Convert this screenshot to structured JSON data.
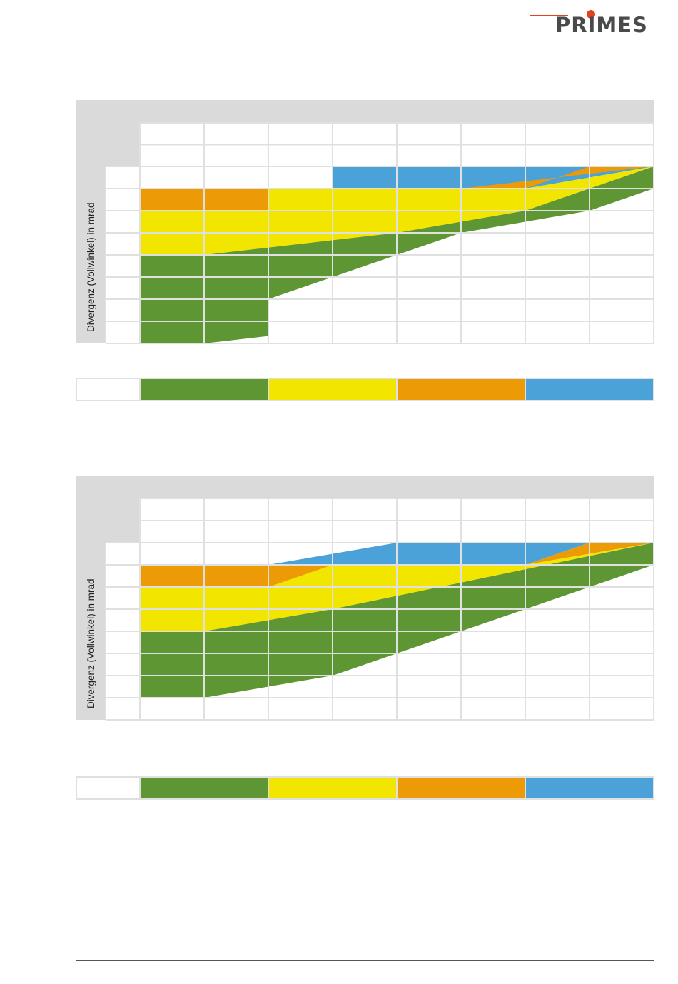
{
  "header": {
    "logo_text": "PRIMES"
  },
  "colors": {
    "green": "#5e9634",
    "yellow": "#f2e600",
    "orange": "#ec9a06",
    "blue": "#4aa2d9",
    "header_gray": "#dadada",
    "grid_line": "#e0e0e0"
  },
  "charts": [
    {
      "ylabel": "Divergenz (Vollwinkel) in mrad",
      "legend": [
        "green",
        "yellow",
        "orange",
        "blue"
      ],
      "columns": 8,
      "rows": 8,
      "regions": [
        {
          "color": "blue",
          "poly": [
            [
              3,
              0
            ],
            [
              7,
              0
            ],
            [
              8,
              0
            ],
            [
              8,
              0
            ],
            [
              6,
              1
            ],
            [
              2,
              1
            ],
            [
              0,
              1
            ],
            [
              0,
              2
            ],
            [
              0,
              2
            ],
            [
              3,
              1
            ],
            [
              3,
              1
            ]
          ]
        },
        {
          "color": "orange",
          "poly": [
            [
              0,
              2
            ],
            [
              2,
              2
            ],
            [
              3,
              1
            ],
            [
              5,
              1
            ],
            [
              8,
              0
            ],
            [
              7,
              0
            ],
            [
              6,
              1
            ],
            [
              2,
              1
            ],
            [
              0,
              1
            ]
          ]
        },
        {
          "color": "yellow",
          "poly": [
            [
              0,
              4
            ],
            [
              1,
              4
            ],
            [
              4,
              3
            ],
            [
              6,
              2
            ],
            [
              8,
              0
            ],
            [
              8,
              0
            ],
            [
              6,
              1
            ],
            [
              5,
              1
            ],
            [
              3,
              1
            ],
            [
              2,
              1
            ],
            [
              2,
              2
            ],
            [
              0,
              2
            ]
          ]
        },
        {
          "color": "green",
          "poly": [
            [
              0,
              8
            ],
            [
              1,
              8
            ],
            [
              2,
              7.667
            ],
            [
              2,
              6
            ],
            [
              3,
              5
            ],
            [
              5,
              3
            ],
            [
              7,
              2
            ],
            [
              8,
              1
            ],
            [
              8,
              0
            ],
            [
              6,
              2
            ],
            [
              4,
              3
            ],
            [
              1,
              4
            ],
            [
              0,
              4
            ]
          ]
        }
      ]
    },
    {
      "ylabel": "Divergenz (Vollwinkel) in mrad",
      "legend": [
        "green",
        "yellow",
        "orange",
        "blue"
      ],
      "columns": 8,
      "rows": 8,
      "regions": [
        {
          "color": "blue",
          "poly": [
            [
              4,
              0
            ],
            [
              7,
              0
            ],
            [
              6,
              1
            ],
            [
              2,
              1
            ],
            [
              0,
              1
            ],
            [
              0,
              2
            ],
            [
              0,
              2
            ],
            [
              4,
              0
            ]
          ]
        },
        {
          "color": "orange",
          "poly": [
            [
              0,
              2
            ],
            [
              2,
              2
            ],
            [
              6,
              1
            ],
            [
              8,
              0
            ],
            [
              7,
              0
            ],
            [
              6,
              1
            ],
            [
              2,
              1
            ],
            [
              0,
              1
            ]
          ]
        },
        {
          "color": "yellow",
          "poly": [
            [
              0,
              4
            ],
            [
              1,
              4
            ],
            [
              3,
              3
            ],
            [
              8,
              0
            ],
            [
              8,
              0
            ],
            [
              6,
              1
            ],
            [
              3,
              1
            ],
            [
              2,
              2
            ],
            [
              0,
              2
            ]
          ]
        },
        {
          "color": "green",
          "poly": [
            [
              0,
              7
            ],
            [
              1,
              7
            ],
            [
              1,
              7
            ],
            [
              3,
              6
            ],
            [
              7,
              2
            ],
            [
              8,
              1
            ],
            [
              8,
              0
            ],
            [
              3,
              3
            ],
            [
              1,
              4
            ],
            [
              0,
              4
            ]
          ]
        }
      ]
    }
  ]
}
